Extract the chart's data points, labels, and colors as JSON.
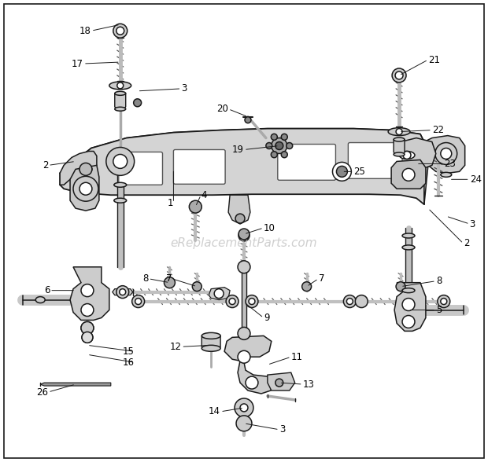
{
  "background_color": "#ffffff",
  "border_color": "#000000",
  "watermark_text": "eReplacementParts.com",
  "watermark_color": "#bbbbbb",
  "watermark_fontsize": 11,
  "fig_width": 6.2,
  "fig_height": 5.88,
  "dpi": 100,
  "line_color": "#1a1a1a",
  "fill_color": "#e8e8e8",
  "label_fontsize": 8.5,
  "label_color": "#000000"
}
